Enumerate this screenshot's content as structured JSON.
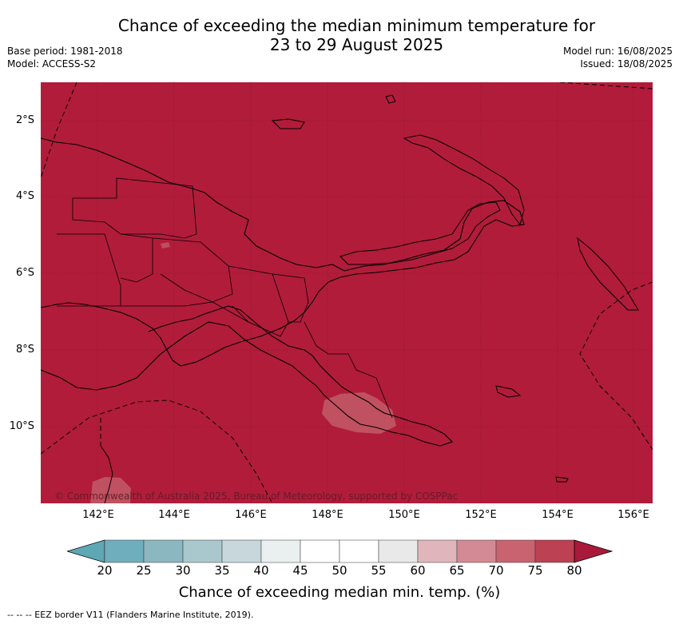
{
  "title": {
    "line1": "Chance of exceeding the median minimum temperature for",
    "line2": "23 to 29 August 2025"
  },
  "meta_left": {
    "base_period": "Base period: 1981-2018",
    "model": "Model: ACCESS-S2"
  },
  "meta_right": {
    "model_run": "Model run: 16/08/2025",
    "issued": "Issued: 18/08/2025"
  },
  "map": {
    "background_color": "#b11c3a",
    "copyright": "© Commonwealth of Australia 2025, Bureau of Meteorology, supported by COSPPac",
    "lon_ticks": [
      "142°E",
      "144°E",
      "146°E",
      "148°E",
      "150°E",
      "152°E",
      "154°E",
      "156°E"
    ],
    "lat_ticks": [
      "2°S",
      "4°S",
      "6°S",
      "8°S",
      "10°S"
    ],
    "extent": {
      "lon": [
        140.6,
        156.5
      ],
      "lat": [
        -12.0,
        -1.0
      ]
    }
  },
  "colorbar": {
    "ticks": [
      "20",
      "25",
      "30",
      "35",
      "40",
      "45",
      "50",
      "55",
      "60",
      "65",
      "70",
      "75",
      "80"
    ],
    "colors": [
      "#5ea8b6",
      "#6faebc",
      "#8bb7c1",
      "#a9c8cd",
      "#c7d7db",
      "#eaeff0",
      "#ffffff",
      "#ffffff",
      "#e9e9e9",
      "#e0b6bc",
      "#d48a94",
      "#c9636f",
      "#bc4152",
      "#a9193a"
    ],
    "label": "Chance of exceeding median min. temp. (%)"
  },
  "footnote": "--  --  -- EEZ border V11 (Flanders Marine Institute, 2019)."
}
